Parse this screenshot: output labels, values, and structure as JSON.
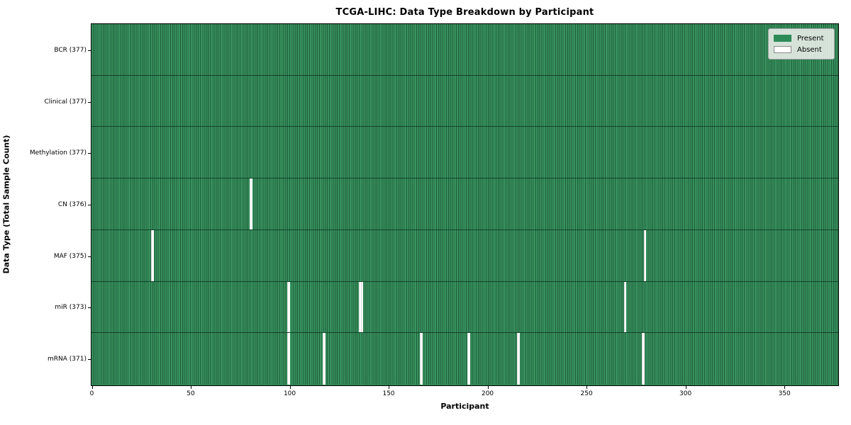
{
  "chart_data": {
    "type": "heatmap",
    "title": "TCGA-LIHC: Data Type Breakdown by Participant",
    "xlabel": "Participant",
    "ylabel": "Data Type (Total Sample Count)",
    "x_range": [
      0,
      377
    ],
    "x_ticks": [
      0,
      50,
      100,
      150,
      200,
      250,
      300,
      350
    ],
    "n_participants": 377,
    "grid": false,
    "colors": {
      "present": "#2e8b57",
      "cell_edge": "#1d5c38",
      "absent": "#ffffff",
      "row_divider": "#14402a"
    },
    "legend": {
      "position": "upper right",
      "entries": [
        {
          "label": "Present",
          "color": "#2e8b57"
        },
        {
          "label": "Absent",
          "color": "#ffffff"
        }
      ]
    },
    "rows": [
      {
        "name": "BCR",
        "label": "BCR (377)",
        "present_count": 377,
        "absent_count": 0,
        "absent_participants": []
      },
      {
        "name": "Clinical",
        "label": "Clinical (377)",
        "present_count": 377,
        "absent_count": 0,
        "absent_participants": []
      },
      {
        "name": "Methylation",
        "label": "Methylation (377)",
        "present_count": 377,
        "absent_count": 0,
        "absent_participants": []
      },
      {
        "name": "CN",
        "label": "CN (376)",
        "present_count": 376,
        "absent_count": 1,
        "absent_participants": [
          80
        ]
      },
      {
        "name": "MAF",
        "label": "MAF (375)",
        "present_count": 375,
        "absent_count": 2,
        "absent_participants": [
          30,
          279
        ]
      },
      {
        "name": "miR",
        "label": "miR (373)",
        "present_count": 373,
        "absent_count": 4,
        "absent_participants": [
          99,
          135,
          136,
          269
        ]
      },
      {
        "name": "mRNA",
        "label": "mRNA (371)",
        "present_count": 371,
        "absent_count": 6,
        "absent_participants": [
          99,
          117,
          166,
          190,
          215,
          278
        ]
      }
    ]
  }
}
